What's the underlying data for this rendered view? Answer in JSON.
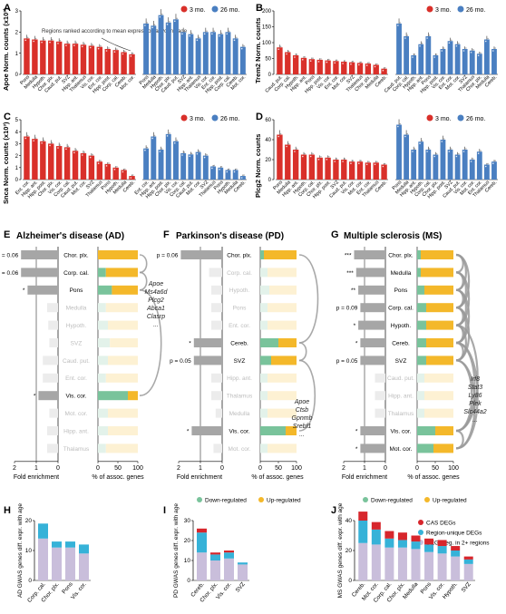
{
  "colors": {
    "young": "#d9302a",
    "old": "#4a7fc1",
    "fold_bar": "#a6a6a6",
    "fold_bar_faded": "#ececec",
    "down": "#79c39b",
    "up": "#f4b82a",
    "down_faded": "#e3f2ea",
    "up_faded": "#fdf1d3",
    "cas": "#d7262c",
    "region_unique": "#36b2d8",
    "multi_region": "#c9bedb",
    "arc": "#9a9a9a",
    "text_faded": "#bdbdbd"
  },
  "panels": {
    "A": {
      "letter": "A",
      "label": "Apoe Norm. counts (x10³)"
    },
    "B": {
      "letter": "B",
      "label": "Trem2 Norm. counts"
    },
    "C": {
      "letter": "C",
      "label": "Snca Norm. counts (x10³)"
    },
    "D": {
      "letter": "D",
      "label": "Plcg2 Norm. counts"
    },
    "E": {
      "letter": "E",
      "title": "Alzheimer's disease (AD)"
    },
    "F": {
      "letter": "F",
      "title": "Parkinson's disease (PD)"
    },
    "G": {
      "letter": "G",
      "title": "Multiple sclerosis (MS)"
    },
    "H": {
      "letter": "H"
    },
    "I": {
      "letter": "I"
    },
    "J": {
      "letter": "J"
    }
  },
  "legend_age": {
    "young": "3 mo.",
    "old": "26 mo."
  },
  "annotation_a": "Regions ranked according to mean expression at young age",
  "enrichment_axes": {
    "fold_label": "Fold enrichment",
    "pct_label": "% of assoc. genes",
    "fold_ticks": [
      "2",
      "1",
      "0"
    ],
    "pct_ticks": [
      "0",
      "50",
      "100"
    ]
  },
  "legend_direction": {
    "down": "Down-regulated",
    "up": "Up-regulated"
  },
  "legend_deg": {
    "cas": "CAS DEGs",
    "unique": "Region-unique DEGs",
    "multi": "DEGs reg. in 2+ regions"
  },
  "chart_data": [
    {
      "type": "bar",
      "panel": "A",
      "gene": "Apoe",
      "ylabel": "Apoe Norm. counts (x10³)",
      "ylim": [
        0,
        3
      ],
      "yticks": [
        0,
        1,
        2,
        3
      ],
      "series": [
        {
          "name": "3 mo.",
          "categories": [
            "Pons",
            "Medulla",
            "Hypoth.",
            "Chor. plx.",
            "Caud. put.",
            "SVZ",
            "Hipp. ant.",
            "Thalamus",
            "Vis. cor.",
            "Ent. cor.",
            "Hipp. post.",
            "Corp. cal.",
            "Cereb.",
            "Mot. cor."
          ],
          "values": [
            1.7,
            1.65,
            1.6,
            1.6,
            1.55,
            1.45,
            1.45,
            1.4,
            1.35,
            1.3,
            1.2,
            1.15,
            1.05,
            0.95
          ]
        },
        {
          "name": "26 mo.",
          "categories": [
            "Pons",
            "Medulla",
            "Hypoth.",
            "Chor. plx.",
            "Caud. put.",
            "SVZ",
            "Hipp. ant.",
            "Thalamus",
            "Vis. cor.",
            "Ent. cor.",
            "Hipp. post.",
            "Corp. cal.",
            "Cereb.",
            "Mot. cor."
          ],
          "values": [
            2.4,
            2.3,
            2.8,
            2.45,
            2.6,
            2.0,
            1.9,
            1.7,
            2.0,
            2.0,
            1.9,
            2.0,
            1.7,
            1.3
          ]
        }
      ]
    },
    {
      "type": "bar",
      "panel": "B",
      "gene": "Trem2",
      "ylabel": "Trem2 Norm. counts",
      "ylim": [
        0,
        200
      ],
      "yticks": [
        0,
        50,
        100,
        150,
        200
      ],
      "series": [
        {
          "name": "3 mo.",
          "categories": [
            "Caud. put.",
            "Corp. cal.",
            "Hypoth.",
            "Hipp. ant.",
            "Pons",
            "Hipp. post.",
            "Vis. cor.",
            "Ent. cor.",
            "Mot. cor.",
            "SVZ",
            "Thalamus",
            "Chor. plx.",
            "Medulla",
            "Cereb."
          ],
          "values": [
            85,
            70,
            60,
            52,
            48,
            46,
            44,
            42,
            40,
            38,
            36,
            34,
            30,
            18
          ]
        },
        {
          "name": "26 mo.",
          "categories": [
            "Caud. put.",
            "Corp. cal.",
            "Hypoth.",
            "Hipp. ant.",
            "Pons",
            "Hipp. post.",
            "Vis. cor.",
            "Ent. cor.",
            "Mot. cor.",
            "SVZ",
            "Thalamus",
            "Chor. plx.",
            "Medulla",
            "Cereb."
          ],
          "values": [
            160,
            120,
            60,
            95,
            120,
            60,
            80,
            105,
            95,
            80,
            75,
            65,
            110,
            80
          ]
        }
      ]
    },
    {
      "type": "bar",
      "panel": "C",
      "gene": "Snca",
      "ylabel": "Snca Norm. counts (x10³)",
      "ylim": [
        0,
        5
      ],
      "yticks": [
        0,
        1,
        2,
        3,
        4,
        5
      ],
      "series": [
        {
          "name": "3 mo.",
          "categories": [
            "Ent. cor.",
            "Hipp. ant.",
            "Hipp. post.",
            "Chor. plx.",
            "Vis. cor.",
            "Corp. cal.",
            "Caud. put.",
            "Mot. cor.",
            "SVZ",
            "Thalamus",
            "Pons",
            "Hypoth.",
            "Medulla",
            "Cereb."
          ],
          "values": [
            3.6,
            3.4,
            3.2,
            3.0,
            2.8,
            2.7,
            2.4,
            2.2,
            2.0,
            1.5,
            1.3,
            1.0,
            0.8,
            0.3
          ]
        },
        {
          "name": "26 mo.",
          "categories": [
            "Ent. cor.",
            "Hipp. ant.",
            "Hipp. post.",
            "Chor. plx.",
            "Vis. cor.",
            "Corp. cal.",
            "Caud. put.",
            "Mot. cor.",
            "SVZ",
            "Thalamus",
            "Pons",
            "Hypoth.",
            "Medulla",
            "Cereb."
          ],
          "values": [
            2.6,
            3.6,
            2.5,
            3.8,
            3.2,
            2.2,
            2.1,
            2.3,
            2.0,
            1.1,
            1.0,
            0.8,
            0.8,
            0.3
          ]
        }
      ]
    },
    {
      "type": "bar",
      "panel": "D",
      "gene": "Plcg2",
      "ylabel": "Plcg2 Norm. counts",
      "ylim": [
        0,
        60
      ],
      "yticks": [
        0,
        20,
        40,
        60
      ],
      "series": [
        {
          "name": "3 mo.",
          "categories": [
            "Pons",
            "Medulla",
            "Hipp. ant.",
            "Hypoth.",
            "Corp. cal.",
            "Chor. plx.",
            "Hipp. post.",
            "SVZ",
            "Caud. put.",
            "Vis. cor.",
            "Mot. cor.",
            "Ent. cor.",
            "Thalamus",
            "Cereb."
          ],
          "values": [
            45,
            35,
            30,
            25,
            25,
            22,
            22,
            20,
            20,
            18,
            18,
            17,
            17,
            15
          ]
        },
        {
          "name": "26 mo.",
          "categories": [
            "Pons",
            "Medulla",
            "Hipp. ant.",
            "Hypoth.",
            "Corp. cal.",
            "Chor. plx.",
            "Hipp. post.",
            "SVZ",
            "Caud. put.",
            "Vis. cor.",
            "Mot. cor.",
            "Ent. cor.",
            "Thalamus",
            "Cereb."
          ],
          "values": [
            55,
            45,
            30,
            38,
            30,
            25,
            40,
            30,
            25,
            30,
            20,
            28,
            15,
            18
          ]
        }
      ]
    },
    {
      "type": "bar",
      "panel": "E",
      "disease": "Alzheimer's disease (AD)",
      "xlabel": "Fold enrichment",
      "rows": [
        {
          "region": "Chor. plx.",
          "fold": 1.7,
          "down_pct": 0,
          "significant": true,
          "label": "p = 0.06"
        },
        {
          "region": "Corp. cal.",
          "fold": 1.7,
          "down_pct": 20,
          "significant": true,
          "label": "p = 0.06"
        },
        {
          "region": "Pons",
          "fold": 1.4,
          "down_pct": 35,
          "significant": true,
          "label": "*"
        },
        {
          "region": "Medulla",
          "fold": 0.5,
          "down_pct": 20,
          "significant": false,
          "label": ""
        },
        {
          "region": "Hypoth.",
          "fold": 0.45,
          "down_pct": 25,
          "significant": false,
          "label": ""
        },
        {
          "region": "SVZ",
          "fold": 0.4,
          "down_pct": 30,
          "significant": false,
          "label": ""
        },
        {
          "region": "Caud. put.",
          "fold": 0.7,
          "down_pct": 25,
          "significant": false,
          "label": ""
        },
        {
          "region": "Ent. cor.",
          "fold": 0.7,
          "down_pct": 20,
          "significant": false,
          "label": ""
        },
        {
          "region": "Vis. cor.",
          "fold": 0.9,
          "down_pct": 75,
          "significant": true,
          "label": "*"
        },
        {
          "region": "Mot. cor.",
          "fold": 0.4,
          "down_pct": 25,
          "significant": false,
          "label": ""
        },
        {
          "region": "Hipp. ant.",
          "fold": 0.5,
          "down_pct": 25,
          "significant": false,
          "label": ""
        },
        {
          "region": "Thalamus",
          "fold": 0.5,
          "down_pct": 20,
          "significant": false,
          "label": ""
        }
      ],
      "genes": [
        "Apoe",
        "Ms4a6d",
        "Plcg2",
        "Abca1",
        "Clasrp",
        "..."
      ]
    },
    {
      "type": "bar",
      "panel": "F",
      "disease": "Parkinson's disease (PD)",
      "xlabel": "Fold enrichment",
      "rows": [
        {
          "region": "Chor. plx.",
          "fold": 1.9,
          "down_pct": 10,
          "significant": true,
          "label": "p = 0.06"
        },
        {
          "region": "Corp. cal.",
          "fold": 0.6,
          "down_pct": 20,
          "significant": false,
          "label": ""
        },
        {
          "region": "Hypoth.",
          "fold": 0.5,
          "down_pct": 25,
          "significant": false,
          "label": ""
        },
        {
          "region": "Pons",
          "fold": 0.5,
          "down_pct": 20,
          "significant": false,
          "label": ""
        },
        {
          "region": "Ent. cor.",
          "fold": 0.5,
          "down_pct": 20,
          "significant": false,
          "label": ""
        },
        {
          "region": "Cereb.",
          "fold": 1.3,
          "down_pct": 50,
          "significant": true,
          "label": "*"
        },
        {
          "region": "SVZ",
          "fold": 1.3,
          "down_pct": 30,
          "significant": true,
          "label": "p = 0.05"
        },
        {
          "region": "Hipp. ant.",
          "fold": 0.5,
          "down_pct": 20,
          "significant": false,
          "label": ""
        },
        {
          "region": "Thalamus",
          "fold": 0.5,
          "down_pct": 20,
          "significant": false,
          "label": ""
        },
        {
          "region": "Medulla",
          "fold": 0.3,
          "down_pct": 20,
          "significant": false,
          "label": ""
        },
        {
          "region": "Vis. cor.",
          "fold": 1.4,
          "down_pct": 70,
          "significant": true,
          "label": "*"
        },
        {
          "region": "Mot. cor.",
          "fold": 0.4,
          "down_pct": 20,
          "significant": false,
          "label": ""
        }
      ],
      "genes": [
        "Apoe",
        "Ctsb",
        "Gpnmb",
        "Srebf1",
        "..."
      ]
    },
    {
      "type": "bar",
      "panel": "G",
      "disease": "Multiple sclerosis (MS)",
      "xlabel": "Fold enrichment",
      "rows": [
        {
          "region": "Chor. plx.",
          "fold": 1.5,
          "down_pct": 10,
          "significant": true,
          "label": "***"
        },
        {
          "region": "Medulla",
          "fold": 1.4,
          "down_pct": 10,
          "significant": true,
          "label": "***"
        },
        {
          "region": "Pons",
          "fold": 1.3,
          "down_pct": 20,
          "significant": true,
          "label": "**"
        },
        {
          "region": "Corp. cal.",
          "fold": 1.2,
          "down_pct": 25,
          "significant": true,
          "label": "p = 0.09"
        },
        {
          "region": "Hypoth.",
          "fold": 1.3,
          "down_pct": 25,
          "significant": true,
          "label": "*"
        },
        {
          "region": "Cereb.",
          "fold": 1.2,
          "down_pct": 25,
          "significant": true,
          "label": "*"
        },
        {
          "region": "SVZ",
          "fold": 1.2,
          "down_pct": 25,
          "significant": true,
          "label": "p = 0.05"
        },
        {
          "region": "Caud. put.",
          "fold": 0.5,
          "down_pct": 20,
          "significant": false,
          "label": ""
        },
        {
          "region": "Hipp. ant.",
          "fold": 0.5,
          "down_pct": 20,
          "significant": false,
          "label": ""
        },
        {
          "region": "Thalamus",
          "fold": 0.5,
          "down_pct": 20,
          "significant": false,
          "label": ""
        },
        {
          "region": "Vis. cor.",
          "fold": 1.2,
          "down_pct": 50,
          "significant": true,
          "label": "*"
        },
        {
          "region": "Mot. cor.",
          "fold": 1.2,
          "down_pct": 45,
          "significant": true,
          "label": "*"
        }
      ],
      "genes": [
        "Irf8",
        "Stat3",
        "Ly86",
        "Plek",
        "Slc44a2",
        "..."
      ]
    },
    {
      "type": "bar",
      "panel": "H",
      "ylabel": "AD GWAS genes diff. expr. with age",
      "ylim": [
        0,
        20
      ],
      "yticks": [
        0,
        10,
        20
      ],
      "categories": [
        "Corp. cal.",
        "Chor. plx.",
        "Pons",
        "Vis. cor."
      ],
      "series": [
        {
          "name": "DEGs reg. in 2+ regions",
          "values": [
            14,
            11,
            11,
            9
          ]
        },
        {
          "name": "Region-unique DEGs",
          "values": [
            5,
            2,
            2,
            3
          ]
        },
        {
          "name": "CAS DEGs",
          "values": [
            0,
            0,
            0,
            0
          ]
        }
      ]
    },
    {
      "type": "bar",
      "panel": "I",
      "ylabel": "PD GWAS genes diff. expr. with age",
      "ylim": [
        0,
        30
      ],
      "yticks": [
        0,
        10,
        20,
        30
      ],
      "categories": [
        "Cereb.",
        "Chor. plx.",
        "Vis. cor.",
        "SVZ"
      ],
      "series": [
        {
          "name": "DEGs reg. in 2+ regions",
          "values": [
            14,
            10,
            11,
            8
          ]
        },
        {
          "name": "Region-unique DEGs",
          "values": [
            10,
            3,
            3,
            1
          ]
        },
        {
          "name": "CAS DEGs",
          "values": [
            2,
            1,
            1,
            0
          ]
        }
      ]
    },
    {
      "type": "bar",
      "panel": "J",
      "ylabel": "MS GWAS genes diff. expr. with age",
      "ylim": [
        0,
        40
      ],
      "yticks": [
        0,
        20,
        40
      ],
      "categories": [
        "Cereb.",
        "Mot. cor.",
        "Corp. cal.",
        "Chor. plx.",
        "Medulla",
        "Pons",
        "Vis. cor.",
        "Hypoth.",
        "SVZ"
      ],
      "series": [
        {
          "name": "DEGs reg. in 2+ regions",
          "values": [
            25,
            24,
            22,
            22,
            21,
            19,
            18,
            16,
            11
          ]
        },
        {
          "name": "Region-unique DEGs",
          "values": [
            15,
            10,
            6,
            5,
            5,
            5,
            5,
            4,
            3
          ]
        },
        {
          "name": "CAS DEGs",
          "values": [
            6,
            5,
            5,
            5,
            4,
            4,
            4,
            3,
            2
          ]
        }
      ]
    }
  ]
}
